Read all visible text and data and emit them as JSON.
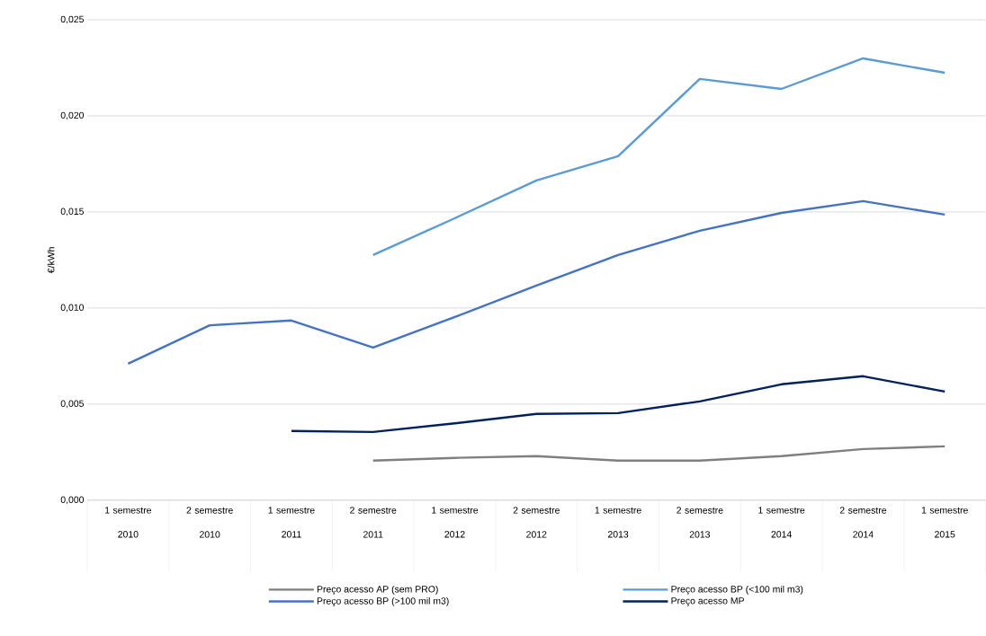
{
  "chart_data": {
    "type": "line",
    "ylabel": "€/kWh",
    "categories": [
      "1 semestre 2010",
      "2 semestre 2010",
      "1 semestre 2011",
      "2 semestre 2011",
      "1 semestre 2012",
      "2 semestre 2012",
      "1 semestre 2013",
      "2 semestre 2013",
      "1 semestre 2014",
      "2 semestre 2014",
      "1 semestre 2015"
    ],
    "series": [
      {
        "name": "Preço acesso AP (sem PRO)",
        "color": "#7f7f7f",
        "values": [
          null,
          null,
          null,
          0.00206,
          0.0022,
          0.00229,
          0.00206,
          0.00206,
          0.00229,
          0.00266,
          0.0028
        ]
      },
      {
        "name": "Preço acesso BP (<100 mil m3)",
        "color": "#5b9bd5",
        "values": [
          null,
          null,
          null,
          0.01276,
          0.01467,
          0.01664,
          0.0179,
          0.02192,
          0.0214,
          0.02299,
          0.02224
        ]
      },
      {
        "name": "Preço acesso BP (>100 mil m3)",
        "color": "#4472c4",
        "values": [
          0.0071,
          0.0091,
          0.00935,
          0.00794,
          0.00953,
          0.01117,
          0.01276,
          0.01402,
          0.01495,
          0.01556,
          0.01486
        ]
      },
      {
        "name": "Preço acesso MP",
        "color": "#002060",
        "values": [
          null,
          null,
          0.0036,
          0.00355,
          0.004,
          0.00449,
          0.00453,
          0.00514,
          0.00603,
          0.00645,
          0.00565
        ]
      }
    ],
    "ylim": [
      0,
      0.025
    ],
    "yticks": [
      {
        "value": 0,
        "label": "0,000"
      },
      {
        "value": 0.005,
        "label": "0,005"
      },
      {
        "value": 0.01,
        "label": "0,010"
      },
      {
        "value": 0.015,
        "label": "0,015"
      },
      {
        "value": 0.02,
        "label": "0,020"
      },
      {
        "value": 0.025,
        "label": "0,025"
      }
    ],
    "grid": "y",
    "legend": "bottom",
    "marker": "none",
    "line_style": "solid"
  }
}
